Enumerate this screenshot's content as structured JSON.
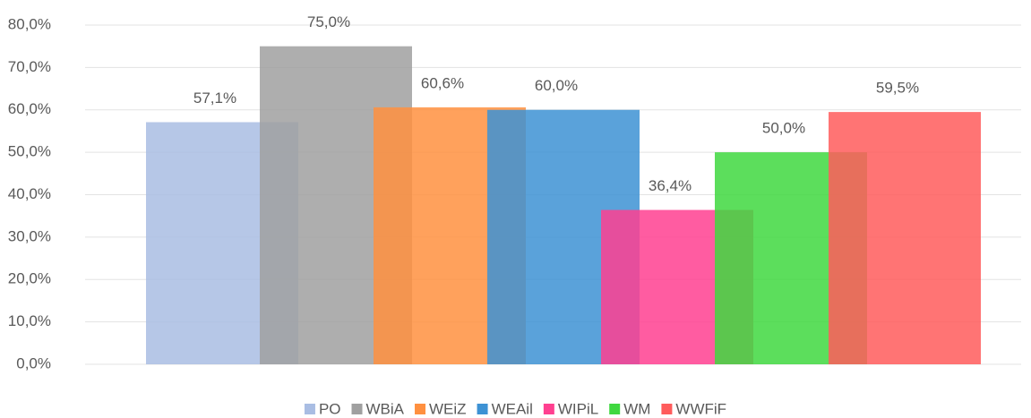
{
  "chart_data": {
    "type": "bar",
    "categories": [
      null
    ],
    "series": [
      {
        "name": "PO",
        "color": "#a9bde3",
        "values": [
          57.1
        ],
        "value_labels": [
          "57,1%"
        ]
      },
      {
        "name": "WBiA",
        "color": "#a0a0a0",
        "values": [
          75.0
        ],
        "value_labels": [
          "75,0%"
        ]
      },
      {
        "name": "WEiZ",
        "color": "#ff9040",
        "values": [
          60.6
        ],
        "value_labels": [
          "60,6%"
        ]
      },
      {
        "name": "WEAil",
        "color": "#3d92d4",
        "values": [
          60.0
        ],
        "value_labels": [
          "60,0%"
        ]
      },
      {
        "name": "WIPiL",
        "color": "#ff4090",
        "values": [
          36.4
        ],
        "value_labels": [
          "36,4%"
        ]
      },
      {
        "name": "WM",
        "color": "#40d840",
        "values": [
          50.0
        ],
        "value_labels": [
          "50,0%"
        ]
      },
      {
        "name": "WWFiF",
        "color": "#ff5c5c",
        "values": [
          59.5
        ],
        "value_labels": [
          "59,5%"
        ]
      }
    ],
    "ylim": [
      0,
      80
    ],
    "yticks": [
      {
        "value": 0,
        "label": "0,0%"
      },
      {
        "value": 10,
        "label": "10,0%"
      },
      {
        "value": 20,
        "label": "20,0%"
      },
      {
        "value": 30,
        "label": "30,0%"
      },
      {
        "value": 40,
        "label": "40,0%"
      },
      {
        "value": 50,
        "label": "50,0%"
      },
      {
        "value": 60,
        "label": "60,0%"
      },
      {
        "value": 70,
        "label": "70,0%"
      },
      {
        "value": 80,
        "label": "80,0%"
      }
    ],
    "grid": true,
    "legend": "bottom"
  }
}
